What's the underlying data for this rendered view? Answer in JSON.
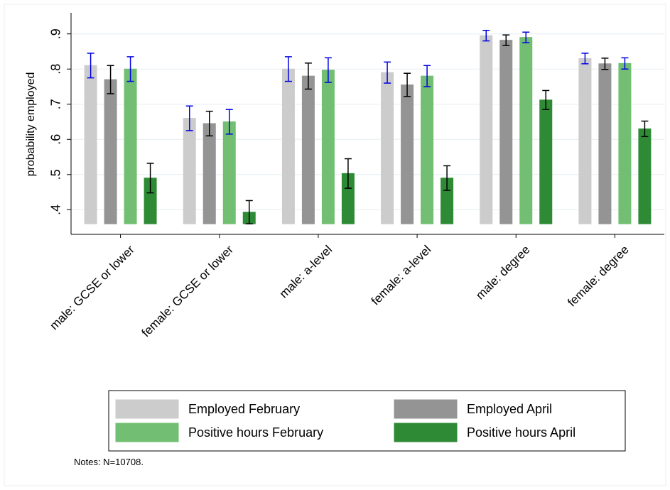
{
  "chart_data": {
    "type": "bar",
    "y_label": "probability employed",
    "notes": "Notes: N=10708.",
    "categories": [
      "male: GCSE or lower",
      "female: GCSE or lower",
      "male: a-level",
      "female: a-level",
      "male: degree",
      "female: degree"
    ],
    "series": [
      {
        "name": "Employed February",
        "color": "#cccccc",
        "error_color": "#0000e6",
        "values": [
          0.81,
          0.66,
          0.8,
          0.79,
          0.895,
          0.83
        ],
        "errors": [
          0.035,
          0.035,
          0.035,
          0.03,
          0.015,
          0.015
        ]
      },
      {
        "name": "Employed April",
        "color": "#949494",
        "error_color": "#000000",
        "values": [
          0.77,
          0.645,
          0.78,
          0.755,
          0.882,
          0.815
        ],
        "errors": [
          0.04,
          0.035,
          0.037,
          0.033,
          0.015,
          0.016
        ]
      },
      {
        "name": "Positive hours February",
        "color": "#72be72",
        "error_color": "#0000e6",
        "values": [
          0.8,
          0.65,
          0.797,
          0.78,
          0.89,
          0.816
        ],
        "errors": [
          0.035,
          0.035,
          0.035,
          0.03,
          0.015,
          0.016
        ]
      },
      {
        "name": "Positive hours April",
        "color": "#2f8a36",
        "error_color": "#000000",
        "values": [
          0.49,
          0.393,
          0.503,
          0.49,
          0.712,
          0.63
        ],
        "errors": [
          0.042,
          0.033,
          0.042,
          0.035,
          0.027,
          0.022
        ]
      }
    ],
    "base": 0.36,
    "ylim": [
      0.33,
      0.96
    ],
    "yticks": [
      {
        "value": 0.4,
        "label": ".4"
      },
      {
        "value": 0.5,
        "label": ".5"
      },
      {
        "value": 0.6,
        "label": ".6"
      },
      {
        "value": 0.7,
        "label": ".7"
      },
      {
        "value": 0.8,
        "label": ".8"
      },
      {
        "value": 0.9,
        "label": ".9"
      }
    ],
    "grid": true
  }
}
